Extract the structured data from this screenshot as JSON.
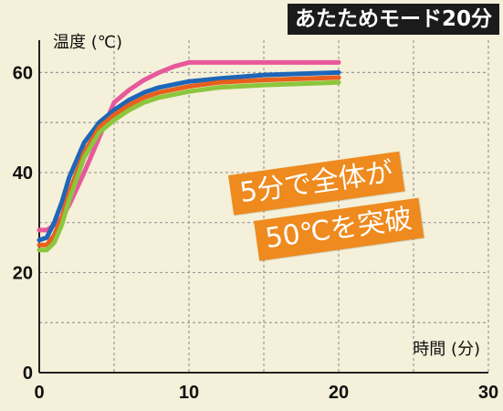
{
  "title": "あたためモード20分",
  "annotation": {
    "line1": "5分で全体が",
    "line2": "50℃を突破"
  },
  "colors": {
    "background": "#f4f0d9",
    "grid": "#9a9a9a",
    "axis": "#222222",
    "title_bg": "#1b1b1b",
    "badge_bg": "#ee8a1e"
  },
  "chart_data": {
    "type": "line",
    "ylabel": "温度 (℃)",
    "xlabel": "時間 (分)",
    "xlim": [
      0,
      30
    ],
    "ylim": [
      0,
      65
    ],
    "xticks": [
      0,
      10,
      20,
      30
    ],
    "yticks": [
      0,
      20,
      40,
      60
    ],
    "grid": true,
    "series": [
      {
        "color": "#e8589a",
        "x": [
          0,
          0.5,
          1,
          1.5,
          2,
          3,
          4,
          5,
          6,
          7,
          8,
          9,
          10,
          12,
          15,
          20
        ],
        "y": [
          28.5,
          28.5,
          29.5,
          31,
          33.5,
          40,
          47,
          54,
          56.5,
          58.5,
          60,
          61.2,
          62,
          62,
          62,
          62
        ]
      },
      {
        "color": "#1e66b8",
        "x": [
          0,
          0.5,
          1,
          1.5,
          2,
          3,
          4,
          5,
          6,
          7,
          8,
          10,
          12,
          15,
          20
        ],
        "y": [
          26.5,
          27,
          30,
          34,
          39,
          46,
          50,
          52.5,
          54.5,
          56,
          57,
          58.2,
          58.8,
          59.5,
          60
        ]
      },
      {
        "color": "#e8601c",
        "x": [
          0,
          0.5,
          1,
          1.5,
          2,
          3,
          4,
          5,
          6,
          7,
          8,
          10,
          12,
          15,
          20
        ],
        "y": [
          25.5,
          25.5,
          27.5,
          31,
          36,
          44,
          49,
          51.5,
          53.5,
          55,
          56,
          57.2,
          58,
          58.5,
          59
        ]
      },
      {
        "color": "#8cc63e",
        "x": [
          0,
          0.5,
          1,
          1.5,
          2,
          3,
          4,
          5,
          6,
          7,
          8,
          10,
          12,
          15,
          20
        ],
        "y": [
          24.5,
          24.5,
          26,
          29.5,
          34.5,
          43,
          48,
          50.5,
          52.5,
          54,
          55,
          56.2,
          57,
          57.5,
          58
        ]
      }
    ]
  }
}
